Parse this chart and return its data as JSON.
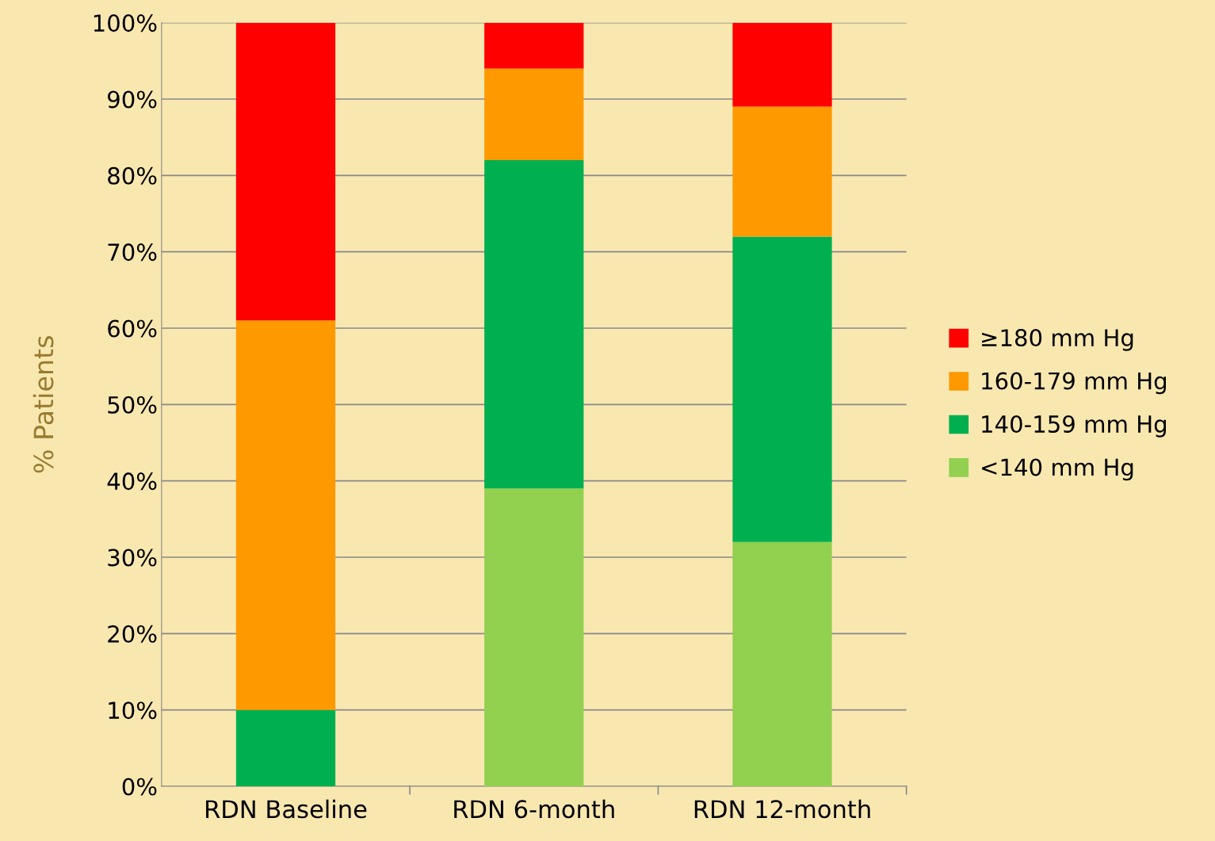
{
  "chart_data": {
    "type": "bar",
    "stacked": true,
    "ylabel": "% Patients",
    "categories": [
      "RDN Baseline",
      "RDN 6-month",
      "RDN 12-month"
    ],
    "series": [
      {
        "name": "<140 mm Hg",
        "color": "#92d050",
        "values": [
          0,
          39,
          32
        ]
      },
      {
        "name": "140-159 mm Hg",
        "color": "#00b050",
        "values": [
          10,
          43,
          40
        ]
      },
      {
        "name": "160-179 mm Hg",
        "color": "#ff9900",
        "values": [
          51,
          12,
          17
        ]
      },
      {
        "name": "≥180 mm Hg",
        "color": "#ff0000",
        "values": [
          39,
          6,
          11
        ]
      }
    ],
    "ylim": [
      0,
      100
    ],
    "yticks": [
      {
        "value": 0,
        "label": "0%"
      },
      {
        "value": 10,
        "label": "10%"
      },
      {
        "value": 20,
        "label": "20%"
      },
      {
        "value": 30,
        "label": "30%"
      },
      {
        "value": 40,
        "label": "40%"
      },
      {
        "value": 50,
        "label": "50%"
      },
      {
        "value": 60,
        "label": "60%"
      },
      {
        "value": 70,
        "label": "70%"
      },
      {
        "value": 80,
        "label": "80%"
      },
      {
        "value": 90,
        "label": "90%"
      },
      {
        "value": 100,
        "label": "100%"
      }
    ],
    "grid": "y",
    "legend": "right"
  }
}
